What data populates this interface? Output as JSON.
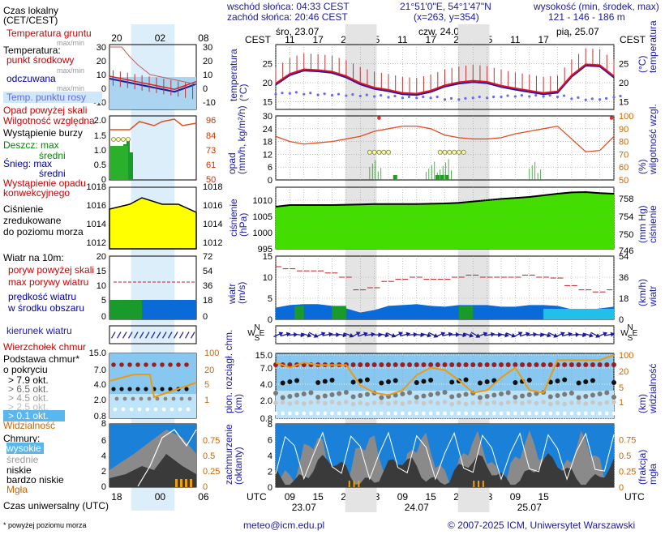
{
  "header": {
    "sunrise": "wschód słońca: 04:33 CEST",
    "sunset": "zachód słońca: 20:46 CEST",
    "coords": "21°51'0\"E, 54°1'47\"N",
    "grid": "(x=263, y=354)",
    "elevation_label": "wysokość (min, środek, max)",
    "elevation": "121 - 146 - 186 m",
    "days": [
      "śro, 23.07",
      "czw, 24.07",
      "pią, 25.07"
    ],
    "cest": "CEST",
    "local_hours": [
      "11",
      "17",
      "23",
      "05",
      "11",
      "17",
      "23",
      "05",
      "11",
      "17"
    ],
    "utc": "UTC",
    "utc_hours": [
      "09",
      "15",
      "21",
      "03",
      "09",
      "15",
      "21",
      "03",
      "09",
      "15"
    ],
    "utc_days": [
      "23.07",
      "24.07",
      "25.07"
    ]
  },
  "legend": {
    "local_time": "Czas lokalny\n(CET/CEST)",
    "hours_top": [
      "20",
      "02",
      "08"
    ],
    "hours_bottom": [
      "18",
      "00",
      "06"
    ],
    "utc": "Czas uniwersalny (UTC)",
    "footnote": "* powyżej poziomu morza",
    "temp_items": [
      {
        "t": "Temperatura gruntu",
        "c": "#cc0000"
      },
      {
        "t": "max/min",
        "c": "#999999"
      },
      {
        "t": "Temperatura:",
        "c": "#000000"
      },
      {
        "t": "punkt środkowy",
        "c": "#cc0000"
      },
      {
        "t": "max/min",
        "c": "#999999"
      },
      {
        "t": "odczuwana",
        "c": "#0000aa"
      },
      {
        "t": "max/min",
        "c": "#999999"
      },
      {
        "t": "Temp. punktu rosy",
        "c": "#6666ee"
      }
    ],
    "temp_ticks_l": [
      "30",
      "20",
      "10",
      "0",
      "-10"
    ],
    "temp_ticks_r": [
      "30",
      "20",
      "10",
      "0",
      "-10"
    ],
    "precip_items": [
      {
        "t": "Opad powyżej skali",
        "c": "#cc0000"
      },
      {
        "t": "Wilgotność względna",
        "c": "#cc0000"
      },
      {
        "t": "Wystąpienie burzy",
        "c": "#000000"
      },
      {
        "t": "Deszcz: max",
        "c": "#008800"
      },
      {
        "t": "średni",
        "c": "#008800"
      },
      {
        "t": "Śnieg: max",
        "c": "#0000aa"
      },
      {
        "t": "średni",
        "c": "#0000aa"
      },
      {
        "t": "Wystąpienie opadu",
        "c": "#cc0000"
      },
      {
        "t": "konwekcyjnego",
        "c": "#cc0000"
      }
    ],
    "precip_ticks_l": [
      "2.0",
      "1.5",
      "1.0",
      "0.5",
      "0"
    ],
    "precip_ticks_r": [
      "96",
      "84",
      "73",
      "61",
      "50"
    ],
    "pressure_items": [
      {
        "t": "Ciśnienie",
        "c": "#000"
      },
      {
        "t": "zredukowane",
        "c": "#000"
      },
      {
        "t": "do poziomu morza",
        "c": "#000"
      }
    ],
    "pressure_ticks_l": [
      "1018",
      "1016",
      "1014",
      "1012"
    ],
    "pressure_ticks_r": [
      "1018",
      "1016",
      "1014",
      "1012"
    ],
    "wind_items": [
      {
        "t": "Wiatr na 10m:",
        "c": "#000"
      },
      {
        "t": "poryw powyżej skali",
        "c": "#cc0000"
      },
      {
        "t": "max porywy wiatru",
        "c": "#cc0000"
      },
      {
        "t": "prędkość wiatru",
        "c": "#0000aa"
      },
      {
        "t": "w środku obszaru",
        "c": "#0000aa"
      }
    ],
    "wind_ticks_l": [
      "20",
      "15",
      "10",
      "5",
      "0"
    ],
    "wind_ticks_r": [
      "72",
      "54",
      "36",
      "18",
      "0"
    ],
    "wind_dir": "kierunek wiatru",
    "vis_items": [
      {
        "t": "Wierzchołek chmur",
        "c": "#cc0000"
      },
      {
        "t": "Podstawa chmur*",
        "c": "#000"
      },
      {
        "t": "o pokryciu",
        "c": "#000"
      },
      {
        "t": "> 7.9 okt.",
        "c": "#000"
      },
      {
        "t": "> 6.5 okt.",
        "c": "#666"
      },
      {
        "t": "> 4.5 okt.",
        "c": "#999"
      },
      {
        "t": "> 2.5 okt.",
        "c": "#bbb"
      },
      {
        "t": "> 0.1 okt.",
        "c": "#fff"
      },
      {
        "t": "Widzialność",
        "c": "#cc6600"
      }
    ],
    "vis_ticks_l": [
      "15.0",
      "7.0",
      "4.0",
      "2.0",
      "0.8"
    ],
    "vis_ticks_r": [
      "100",
      "20",
      "5",
      "1"
    ],
    "cloud_items": [
      {
        "t": "Chmury:",
        "c": "#000"
      },
      {
        "t": "wysokie",
        "c": "#fff"
      },
      {
        "t": "średnie",
        "c": "#999"
      },
      {
        "t": "niskie",
        "c": "#000"
      },
      {
        "t": "bardzo niskie",
        "c": "#000"
      },
      {
        "t": "Mgła",
        "c": "#cc6600"
      }
    ],
    "cloud_ticks_l": [
      "8",
      "6",
      "4",
      "2",
      "0"
    ],
    "cloud_ticks_r": [
      "0.75",
      "0.5",
      "0.25",
      "0"
    ]
  },
  "panels": {
    "temperature": {
      "ylabel": "temperatura\n(°C)",
      "ylabel_r": "(°C)\ntemperatura",
      "ticks": [
        "25",
        "20",
        "15"
      ],
      "ylim": [
        13,
        30
      ]
    },
    "precip": {
      "ylabel": "opad\n(mm/h, kg/m²/h)",
      "ylabel_r": "(%)\nwilgotność wzgl.",
      "ticks_l": [
        "30",
        "24",
        "18",
        "12",
        "6",
        "0"
      ],
      "ticks_r": [
        "100",
        "90",
        "80",
        "70",
        "60",
        "50"
      ]
    },
    "pressure": {
      "ylabel": "ciśnienie\n(hPa)",
      "ylabel_r": "(mm Hg)\nciśnienie",
      "ticks_l": [
        "1010",
        "1005",
        "1000",
        "995"
      ],
      "ticks_r": [
        "758",
        "754",
        "750",
        "746"
      ]
    },
    "wind": {
      "ylabel": "wiatr\n(m/s)",
      "ylabel_r": "(km/h)\nwiatr",
      "ticks_l": [
        "15",
        "10",
        "5",
        "0"
      ],
      "ticks_r": [
        "54",
        "36",
        "18",
        "0"
      ]
    },
    "direction": {
      "labels": [
        "N",
        "W",
        "E",
        "S"
      ]
    },
    "visibility": {
      "ylabel": "pion. rozciągł. chm.\n(km)",
      "ylabel_r": "(km)\nwidzialność",
      "ticks_l": [
        "15.0",
        "7.0",
        "4.0",
        "2.0",
        "0.8"
      ],
      "ticks_r": [
        "100",
        "20",
        "5",
        "1"
      ]
    },
    "clouds": {
      "ylabel": "zachmurzenie\n(oktanty)",
      "ylabel_r": "(frakcja)\nmgła",
      "ticks_l": [
        "8",
        "6",
        "4",
        "2",
        "0"
      ],
      "ticks_r": [
        "0.75",
        "0.5",
        "0.25",
        "0"
      ]
    }
  },
  "footer": {
    "email": "meteo@icm.edu.pl",
    "copyright": "© 2007-2025 ICM, Uniwersytet Warszawski"
  },
  "chart_data": {
    "type": "line",
    "x_hours_utc": [
      6,
      9,
      12,
      15,
      18,
      21,
      24,
      27,
      30,
      33,
      36,
      39,
      42,
      45,
      48,
      51,
      54,
      57,
      60,
      63,
      66,
      69,
      72,
      75,
      78
    ],
    "temperature": [
      19.5,
      22.0,
      23.2,
      23.0,
      22.6,
      21.4,
      19.6,
      18.4,
      17.8,
      17.0,
      16.8,
      17.6,
      19.0,
      19.8,
      20.2,
      19.9,
      18.9,
      18.2,
      17.6,
      17.0,
      17.4,
      21.6,
      24.5,
      24.3,
      21.4
    ],
    "dew_point": [
      17.0,
      17.2,
      17.0,
      16.8,
      16.7,
      16.6,
      16.5,
      16.4,
      16.2,
      16.0,
      16.0,
      16.0,
      15.6,
      15.6,
      16.0,
      16.0,
      16.3,
      16.4,
      16.4,
      16.4,
      16.3,
      15.8,
      15.5,
      15.6,
      16.2
    ],
    "humidity": [
      84,
      80,
      78,
      79,
      80,
      82,
      84,
      88,
      90,
      92,
      92,
      90,
      85,
      83,
      82,
      82,
      83,
      86,
      88,
      90,
      92,
      82,
      72,
      73,
      84
    ],
    "pressure": [
      1008,
      1008.5,
      1008.5,
      1008.5,
      1008.5,
      1008.6,
      1008.7,
      1008.8,
      1008.8,
      1008.8,
      1008.8,
      1008.9,
      1009.0,
      1009.2,
      1009.6,
      1010.0,
      1010.4,
      1010.7,
      1011.0,
      1011.5,
      1012.0,
      1012.4,
      1012.5,
      1012.2,
      1012.0
    ],
    "wind_speed": [
      2.8,
      3.4,
      3.6,
      3.6,
      3.2,
      2.6,
      1.6,
      2.2,
      3.2,
      3.4,
      3.6,
      3.2,
      3.0,
      3.4,
      3.4,
      3.4,
      3.0,
      3.0,
      3.4,
      3.4,
      3.2,
      2.4,
      2.2,
      2.6,
      3.0
    ],
    "wind_gust": [
      12.5,
      12.0,
      11.5,
      11.5,
      11.0,
      10.0,
      7.0,
      7.5,
      9.0,
      9.5,
      10.0,
      9.5,
      9.5,
      10.0,
      10.5,
      10.0,
      10.0,
      10.0,
      10.5,
      10.0,
      9.8,
      8.0,
      7.0,
      6.5,
      7.0
    ],
    "visibility_km": [
      17,
      15,
      17,
      16,
      16,
      16,
      8,
      5,
      4,
      6,
      12,
      15,
      14,
      10,
      5,
      6,
      11,
      15,
      6,
      5,
      18,
      18,
      18,
      18,
      20
    ]
  }
}
